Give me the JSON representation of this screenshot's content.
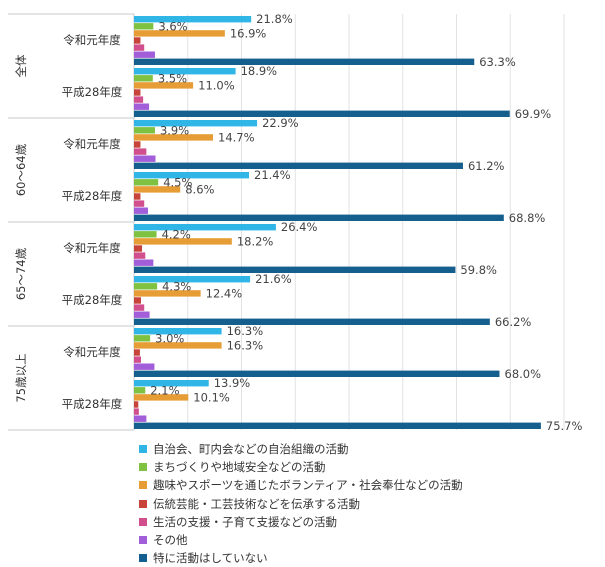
{
  "chart_data": {
    "type": "bar",
    "orientation": "horizontal",
    "xlim": [
      0,
      80
    ],
    "grid": true,
    "legend_position": "bottom",
    "groups": [
      {
        "label": "全体",
        "categories": [
          {
            "label": "令和元年度",
            "values": [
              21.8,
              3.6,
              16.9,
              1.2,
              1.9,
              3.9,
              63.3
            ]
          },
          {
            "label": "平成28年度",
            "values": [
              18.9,
              3.5,
              11.0,
              1.2,
              1.7,
              2.8,
              69.9
            ]
          }
        ]
      },
      {
        "label": "60～64歳",
        "categories": [
          {
            "label": "令和元年度",
            "values": [
              22.9,
              3.9,
              14.7,
              1.2,
              2.3,
              4.0,
              61.2
            ]
          },
          {
            "label": "平成28年度",
            "values": [
              21.4,
              4.5,
              8.6,
              1.2,
              1.9,
              2.6,
              68.8
            ]
          }
        ]
      },
      {
        "label": "65～74歳",
        "categories": [
          {
            "label": "令和元年度",
            "values": [
              26.4,
              4.2,
              18.2,
              1.5,
              2.1,
              3.6,
              59.8
            ]
          },
          {
            "label": "平成28年度",
            "values": [
              21.6,
              4.3,
              12.4,
              1.3,
              1.9,
              2.9,
              66.2
            ]
          }
        ]
      },
      {
        "label": "75歳以上",
        "categories": [
          {
            "label": "令和元年度",
            "values": [
              16.3,
              3.0,
              16.3,
              1.1,
              1.3,
              3.8,
              68.0
            ]
          },
          {
            "label": "平成28年度",
            "values": [
              13.9,
              2.1,
              10.1,
              0.8,
              0.9,
              2.3,
              75.7
            ]
          }
        ]
      }
    ],
    "labeled_series": [
      0,
      1,
      2,
      6
    ],
    "series": [
      {
        "name": "自治会、町内会などの自治組織の活動",
        "color": "#2fb5e6"
      },
      {
        "name": "まちづくりや地域安全などの活動",
        "color": "#7fc241"
      },
      {
        "name": "趣味やスポーツを通じたボランティア・社会奉仕などの活動",
        "color": "#e69d35"
      },
      {
        "name": "伝統芸能・工芸技術などを伝承する活動",
        "color": "#c8433a"
      },
      {
        "name": "生活の支援・子育て支援などの活動",
        "color": "#d04f8c"
      },
      {
        "name": "その他",
        "color": "#a25ed8"
      },
      {
        "name": "特に活動はしていない",
        "color": "#155f8f"
      }
    ]
  }
}
